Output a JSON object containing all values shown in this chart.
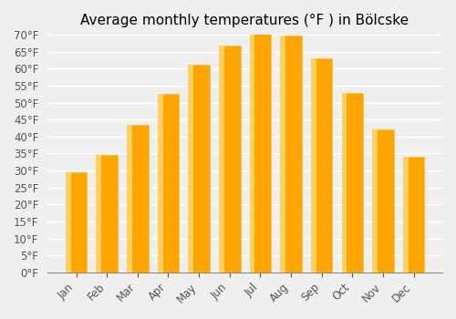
{
  "title": "Average monthly temperatures (°F ) in Bölcske",
  "months": [
    "Jan",
    "Feb",
    "Mar",
    "Apr",
    "May",
    "Jun",
    "Jul",
    "Aug",
    "Sep",
    "Oct",
    "Nov",
    "Dec"
  ],
  "values": [
    29.5,
    34.7,
    43.5,
    52.5,
    61.3,
    66.9,
    70.2,
    69.8,
    63.0,
    52.8,
    42.0,
    34.0
  ],
  "bar_color_face": "#FFA500",
  "bar_color_edge": "#FFB733",
  "ylim": [
    0,
    70
  ],
  "yticks": [
    0,
    5,
    10,
    15,
    20,
    25,
    30,
    35,
    40,
    45,
    50,
    55,
    60,
    65,
    70
  ],
  "ytick_labels": [
    "0°F",
    "5°F",
    "10°F",
    "15°F",
    "20°F",
    "25°F",
    "30°F",
    "35°F",
    "40°F",
    "45°F",
    "50°F",
    "55°F",
    "60°F",
    "65°F",
    "70°F"
  ],
  "bg_color": "#EFEFEF",
  "grid_color": "#FFFFFF",
  "title_fontsize": 11,
  "tick_fontsize": 8.5
}
